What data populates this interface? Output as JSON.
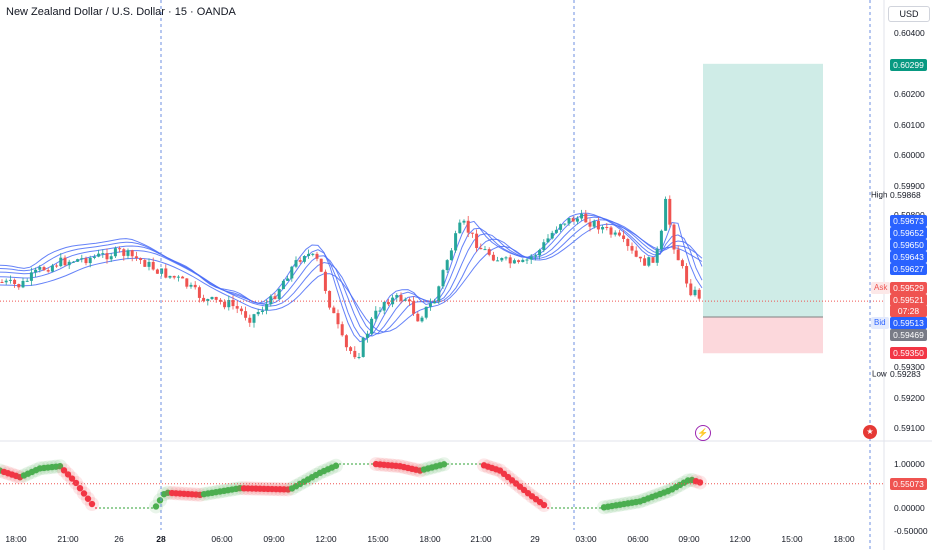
{
  "title": "New Zealand Dollar / U.S. Dollar · 15 · OANDA",
  "currency": "USD",
  "colors": {
    "up": "#26a69a",
    "down": "#ef5350",
    "ma": "#4a6cf7",
    "profit": "#cfece7",
    "loss": "#fcd8dc",
    "osc_up": "#4caf50",
    "osc_down": "#f23645",
    "dashed_v": "#6d8fe0"
  },
  "price_axis": {
    "ticks": [
      "0.60400",
      "0.60200",
      "0.60100",
      "0.60000",
      "0.59900",
      "0.59800",
      "0.59300",
      "0.59200",
      "0.59100"
    ],
    "labels": {
      "target": "0.60299",
      "high_label": "High",
      "high": "0.59868",
      "ma_values": [
        "0.59673",
        "0.59652",
        "0.59650",
        "0.59643",
        "0.59627"
      ],
      "ask_label": "Ask",
      "ask": "0.59529",
      "last": "0.59521",
      "countdown": "07:28",
      "bid_label": "Bid",
      "bid": "0.59513",
      "lower": "0.59469",
      "stop": "0.59350",
      "low_label": "Low",
      "low": "0.59283"
    }
  },
  "osc_axis": {
    "ticks": [
      "1.00000",
      "0.00000",
      "-0.50000"
    ],
    "value": "0.55073"
  },
  "time_axis": [
    "18:00",
    "21:00",
    "26",
    "28",
    "06:00",
    "09:00",
    "12:00",
    "15:00",
    "18:00",
    "21:00",
    "29",
    "03:00",
    "06:00",
    "09:00",
    "12:00",
    "15:00",
    "18:00"
  ],
  "chart_data": {
    "type": "candlestick",
    "symbol": "NZDUSD",
    "interval": "15",
    "price_range": [
      0.5905,
      0.6046
    ],
    "current_price": 0.59521,
    "position": {
      "type": "long",
      "target": 0.60299,
      "entry": 0.59469,
      "stop": 0.5935
    },
    "high": 0.59868,
    "low": 0.59283,
    "oscillator": {
      "range": [
        -0.5,
        1.0
      ],
      "last": 0.55073
    }
  }
}
